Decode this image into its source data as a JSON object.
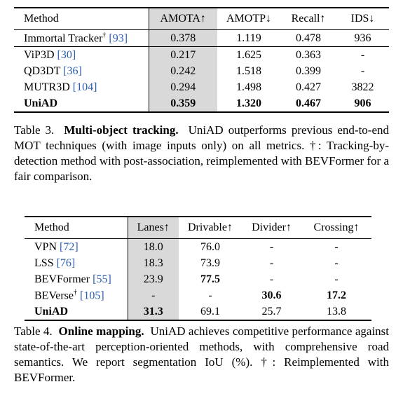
{
  "table3": {
    "header": [
      "Method",
      "AMOTA↑",
      "AMOTP↓",
      "Recall↑",
      "IDS↓"
    ],
    "rows": [
      {
        "method": "Immortal Tracker",
        "note": "†",
        "ref": "[93]",
        "cells": [
          "0.378",
          "1.119",
          "0.478",
          "936"
        ]
      },
      {
        "method": "ViP3D",
        "ref": "[30]",
        "cells": [
          "0.217",
          "1.625",
          "0.363",
          "-"
        ]
      },
      {
        "method": "QD3DT",
        "ref": "[36]",
        "cells": [
          "0.242",
          "1.518",
          "0.399",
          "-"
        ]
      },
      {
        "method": "MUTR3D",
        "ref": "[104]",
        "cells": [
          "0.294",
          "1.498",
          "0.427",
          "3822"
        ]
      },
      {
        "method": "UniAD",
        "cells": [
          "0.359",
          "1.320",
          "0.467",
          "906"
        ]
      }
    ],
    "caption": {
      "label": "Table 3.",
      "title": "Multi-object tracking.",
      "text": "UniAD outperforms previous end-to-end MOT techniques (with image inputs only) on all metrics. †: Tracking-by-detection method with post-association, reimplemented with BEVFormer for a fair comparison."
    }
  },
  "table4": {
    "header": [
      "Method",
      "Lanes↑",
      "Drivable↑",
      "Divider↑",
      "Crossing↑"
    ],
    "rows": [
      {
        "method": "VPN",
        "ref": "[72]",
        "cells": [
          "18.0",
          "76.0",
          "-",
          "-"
        ]
      },
      {
        "method": "LSS",
        "ref": "[76]",
        "cells": [
          "18.3",
          "73.9",
          "-",
          "-"
        ]
      },
      {
        "method": "BEVFormer",
        "ref": "[55]",
        "cells": [
          "23.9",
          "77.5",
          "-",
          "-"
        ]
      },
      {
        "method": "BEVerse",
        "note": "†",
        "ref": "[105]",
        "cells": [
          "-",
          "-",
          "30.6",
          "17.2"
        ]
      },
      {
        "method": "UniAD",
        "cells": [
          "31.3",
          "69.1",
          "25.7",
          "13.8"
        ]
      }
    ],
    "caption": {
      "label": "Table 4.",
      "title": "Online mapping.",
      "text": "UniAD achieves competitive performance against state-of-the-art perception-oriented methods, with comprehensive road semantics. We report segmentation IoU (%). †: Reimplemented with BEVFormer."
    }
  }
}
